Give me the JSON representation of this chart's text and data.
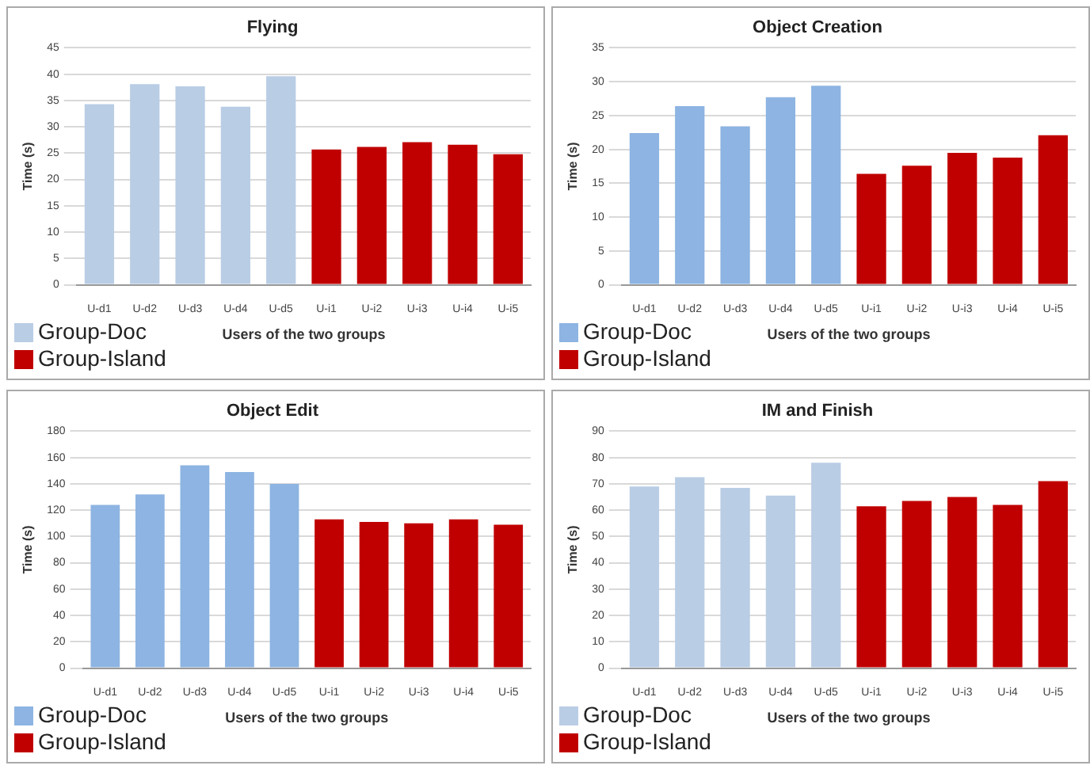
{
  "chart_data": [
    {
      "type": "bar",
      "title": "Flying",
      "xlabel": "Users of the two groups",
      "ylabel": "Time (s)",
      "categories": [
        "U-d1",
        "U-d2",
        "U-d3",
        "U-d4",
        "U-d5",
        "U-i1",
        "U-i2",
        "U-i3",
        "U-i4",
        "U-i5"
      ],
      "series": [
        {
          "name": "Group-Doc",
          "color": "#b9cde5",
          "values": [
            34.3,
            38.1,
            37.7,
            33.8,
            39.6,
            null,
            null,
            null,
            null,
            null
          ]
        },
        {
          "name": "Group-Island",
          "color": "#c00000",
          "values": [
            null,
            null,
            null,
            null,
            null,
            25.7,
            26.2,
            27.1,
            26.6,
            24.8
          ]
        }
      ],
      "ylim": [
        0,
        45
      ],
      "yticks": [
        0,
        5,
        10,
        15,
        20,
        25,
        30,
        35,
        40,
        45
      ],
      "grid": "y",
      "legend": "bottom left"
    },
    {
      "type": "bar",
      "title": "Object Creation",
      "xlabel": "Users of the two groups",
      "ylabel": "Time (s)",
      "categories": [
        "U-d1",
        "U-d2",
        "U-d3",
        "U-d4",
        "U-d5",
        "U-i1",
        "U-i2",
        "U-i3",
        "U-i4",
        "U-i5"
      ],
      "series": [
        {
          "name": "Group-Doc",
          "color": "#8db4e2",
          "values": [
            22.4,
            26.4,
            23.4,
            27.7,
            29.4,
            null,
            null,
            null,
            null,
            null
          ]
        },
        {
          "name": "Group-Island",
          "color": "#c00000",
          "values": [
            null,
            null,
            null,
            null,
            null,
            16.4,
            17.6,
            19.5,
            18.8,
            22.1
          ]
        }
      ],
      "ylim": [
        0,
        35
      ],
      "yticks": [
        0,
        5,
        10,
        15,
        20,
        25,
        30,
        35
      ],
      "grid": "y",
      "legend": "bottom left"
    },
    {
      "type": "bar",
      "title": "Object Edit",
      "xlabel": "Users of the two groups",
      "ylabel": "Time (s)",
      "categories": [
        "U-d1",
        "U-d2",
        "U-d3",
        "U-d4",
        "U-d5",
        "U-i1",
        "U-i2",
        "U-i3",
        "U-i4",
        "U-i5"
      ],
      "series": [
        {
          "name": "Group-Doc",
          "color": "#8db4e2",
          "values": [
            124,
            132,
            154,
            149,
            140,
            null,
            null,
            null,
            null,
            null
          ]
        },
        {
          "name": "Group-Island",
          "color": "#c00000",
          "values": [
            null,
            null,
            null,
            null,
            null,
            113,
            111,
            110,
            113,
            109
          ]
        }
      ],
      "ylim": [
        0,
        180
      ],
      "yticks": [
        0,
        20,
        40,
        60,
        80,
        100,
        120,
        140,
        160,
        180
      ],
      "grid": "y",
      "legend": "bottom left"
    },
    {
      "type": "bar",
      "title": "IM and Finish",
      "xlabel": "Users of the two groups",
      "ylabel": "Time (s)",
      "categories": [
        "U-d1",
        "U-d2",
        "U-d3",
        "U-d4",
        "U-d5",
        "U-i1",
        "U-i2",
        "U-i3",
        "U-i4",
        "U-i5"
      ],
      "series": [
        {
          "name": "Group-Doc",
          "color": "#b9cde5",
          "values": [
            69,
            72.5,
            68.5,
            65.5,
            78,
            null,
            null,
            null,
            null,
            null
          ]
        },
        {
          "name": "Group-Island",
          "color": "#c00000",
          "values": [
            null,
            null,
            null,
            null,
            null,
            61.5,
            63.5,
            65,
            62,
            71
          ]
        }
      ],
      "ylim": [
        0,
        90
      ],
      "yticks": [
        0,
        10,
        20,
        30,
        40,
        50,
        60,
        70,
        80,
        90
      ],
      "grid": "y",
      "legend": "bottom left"
    }
  ]
}
